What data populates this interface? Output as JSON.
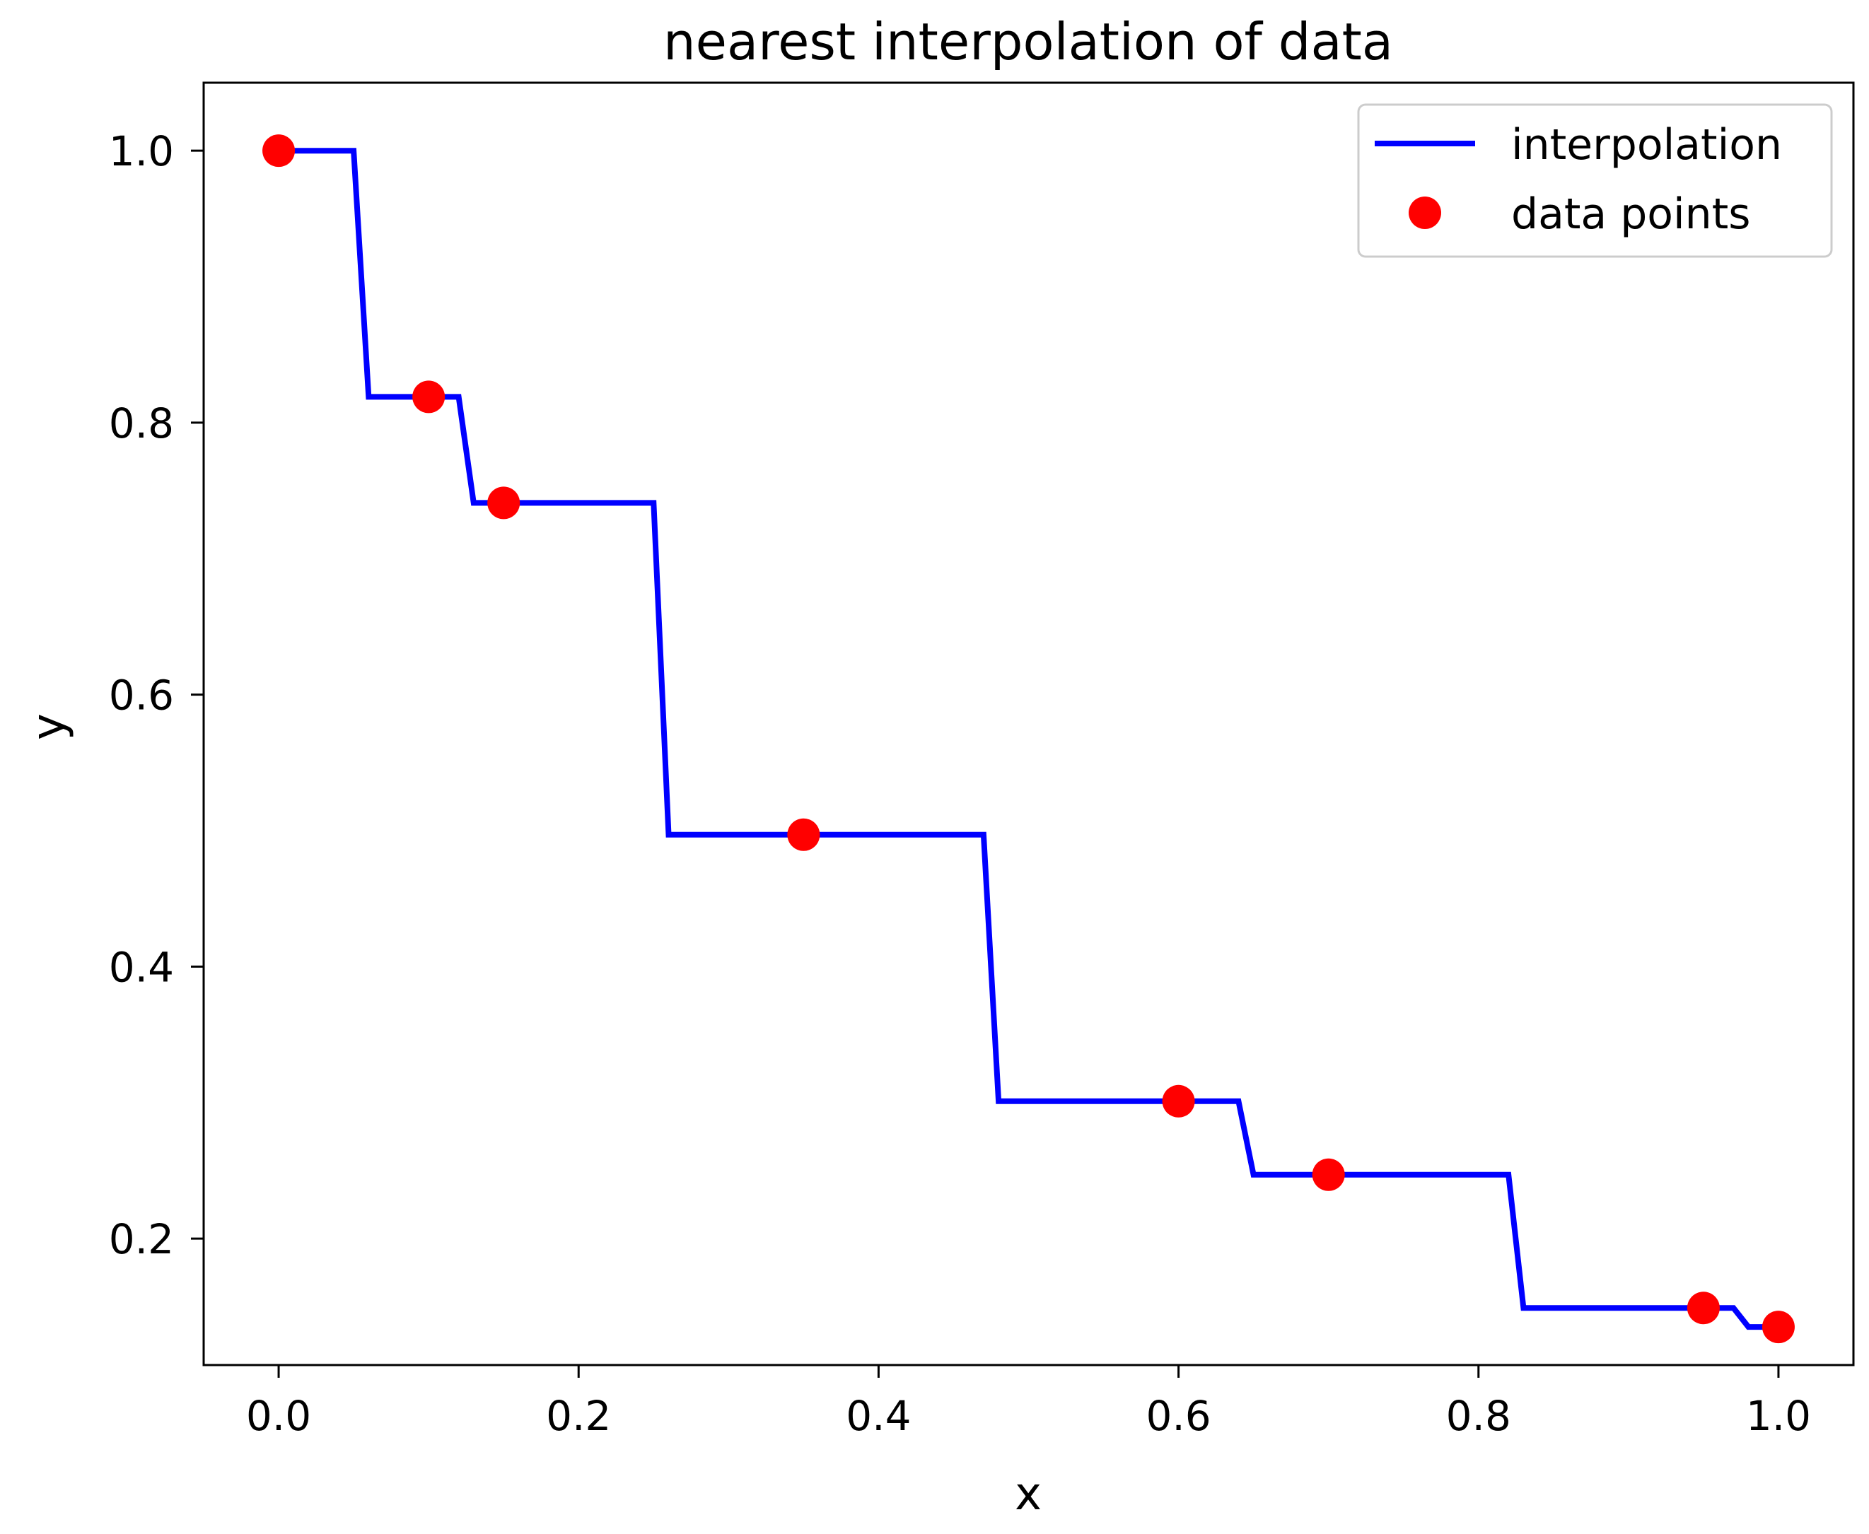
{
  "chart_data": {
    "type": "line",
    "title": "nearest interpolation of data",
    "xlabel": "x",
    "ylabel": "y",
    "xlim": [
      -0.05,
      1.05
    ],
    "ylim": [
      0.107,
      1.05
    ],
    "xticks": [
      "0.0",
      "0.2",
      "0.4",
      "0.6",
      "0.8",
      "1.0"
    ],
    "yticks": [
      "0.2",
      "0.4",
      "0.6",
      "0.8",
      "1.0"
    ],
    "grid": false,
    "legend_position": "top-right",
    "series": [
      {
        "name": "interpolation",
        "kind": "line",
        "color": "#0000ff",
        "x": [
          0.0,
          0.05,
          0.06,
          0.12,
          0.13,
          0.25,
          0.26,
          0.47,
          0.48,
          0.64,
          0.65,
          0.82,
          0.83,
          0.97,
          0.98,
          1.0
        ],
        "y": [
          1.0,
          1.0,
          0.819,
          0.819,
          0.741,
          0.741,
          0.497,
          0.497,
          0.301,
          0.301,
          0.247,
          0.247,
          0.149,
          0.149,
          0.135,
          0.135
        ]
      },
      {
        "name": "data points",
        "kind": "scatter",
        "color": "#ff0000",
        "x": [
          0.0,
          0.1,
          0.15,
          0.35,
          0.6,
          0.7,
          0.95,
          1.0
        ],
        "y": [
          1.0,
          0.819,
          0.741,
          0.497,
          0.301,
          0.247,
          0.149,
          0.135
        ]
      }
    ]
  }
}
